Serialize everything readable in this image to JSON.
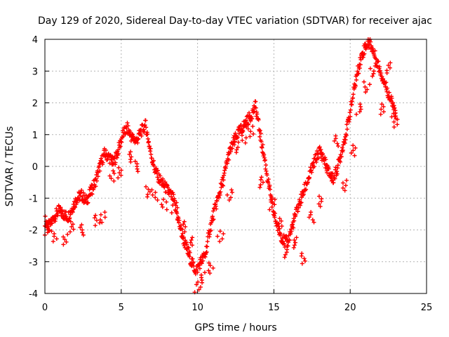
{
  "chart_data": {
    "type": "scatter",
    "title": "Day 129 of 2020, Sidereal Day-to-day VTEC variation (SDTVAR) for receiver ajac",
    "xlabel": "GPS time / hours",
    "ylabel": "SDTVAR / TECUs",
    "xlim": [
      0,
      25
    ],
    "ylim": [
      -4,
      4
    ],
    "xticks": [
      0,
      5,
      10,
      15,
      20,
      25
    ],
    "yticks": [
      -4,
      -3,
      -2,
      -1,
      0,
      1,
      2,
      3,
      4
    ],
    "grid": true,
    "marker": "+",
    "colors": {
      "series": "#ff0000",
      "axis": "#000000",
      "grid": "#b4b4b4"
    },
    "series": [
      {
        "name": "SDTVAR",
        "trace_x": [
          0,
          0.3,
          0.6,
          0.9,
          1.2,
          1.5,
          1.8,
          2.1,
          2.4,
          2.7,
          3.0,
          3.3,
          3.6,
          3.9,
          4.2,
          4.5,
          4.8,
          5.1,
          5.4,
          5.7,
          6.0,
          6.3,
          6.6,
          6.9,
          7.2,
          7.5,
          7.8,
          8.1,
          8.4,
          8.7,
          9.0,
          9.3,
          9.6,
          9.9,
          10.2,
          10.5,
          10.8,
          11.1,
          11.4,
          11.7,
          12.0,
          12.3,
          12.6,
          12.9,
          13.2,
          13.5,
          13.8,
          14.1,
          14.4,
          14.7,
          15.0,
          15.3,
          15.6,
          15.9,
          16.2,
          16.5,
          16.8,
          17.1,
          17.4,
          17.7,
          18.0,
          18.3,
          18.6,
          18.9,
          19.2,
          19.5,
          19.8,
          20.1,
          20.4,
          20.7,
          21.0,
          21.3,
          21.6,
          21.9,
          22.2,
          22.5,
          22.8,
          23.0
        ],
        "trace_y": [
          -1.7,
          -1.9,
          -1.6,
          -1.4,
          -1.5,
          -1.6,
          -1.3,
          -1.0,
          -0.9,
          -1.1,
          -0.8,
          -0.5,
          0.0,
          0.4,
          0.3,
          0.1,
          0.5,
          1.0,
          1.2,
          0.9,
          0.8,
          1.1,
          1.3,
          0.5,
          -0.1,
          -0.4,
          -0.6,
          -0.8,
          -1.0,
          -1.6,
          -2.2,
          -2.6,
          -3.0,
          -3.3,
          -3.0,
          -2.8,
          -2.0,
          -1.4,
          -0.9,
          -0.4,
          0.3,
          0.7,
          1.0,
          1.2,
          1.4,
          1.6,
          1.9,
          1.0,
          0.2,
          -0.7,
          -1.5,
          -2.0,
          -2.3,
          -2.4,
          -1.9,
          -1.4,
          -1.0,
          -0.6,
          -0.2,
          0.2,
          0.5,
          0.2,
          -0.2,
          -0.4,
          0.0,
          0.6,
          1.2,
          2.0,
          2.8,
          3.4,
          3.8,
          3.9,
          3.5,
          3.1,
          2.7,
          2.3,
          1.9,
          1.5
        ],
        "cloud_x": [
          0.1,
          0.6,
          1.3,
          1.8,
          2.5,
          3.4,
          3.8,
          4.4,
          4.9,
          5.5,
          6.1,
          6.7,
          7.2,
          7.8,
          8.5,
          9.1,
          9.5,
          10.0,
          10.4,
          10.9,
          11.5,
          12.1,
          12.5,
          13.1,
          13.5,
          14.2,
          14.9,
          15.4,
          15.8,
          16.3,
          16.9,
          17.5,
          18.0,
          18.6,
          19.1,
          19.6,
          20.2,
          20.6,
          21.1,
          21.5,
          22.1,
          22.6,
          22.9
        ],
        "cloud_y": [
          -2.0,
          -2.2,
          -2.3,
          -1.9,
          -2.0,
          -1.7,
          -1.6,
          -0.3,
          -0.2,
          0.3,
          0.0,
          -0.8,
          -0.9,
          -1.2,
          -1.3,
          -1.9,
          -2.4,
          -3.8,
          -3.5,
          -3.2,
          -2.2,
          -0.9,
          0.6,
          0.9,
          1.1,
          -0.5,
          -1.2,
          -1.8,
          -2.7,
          -2.4,
          -2.9,
          -1.6,
          -1.1,
          -0.3,
          0.8,
          -0.6,
          0.5,
          1.8,
          2.5,
          3.0,
          1.8,
          3.1,
          1.4
        ]
      }
    ]
  }
}
